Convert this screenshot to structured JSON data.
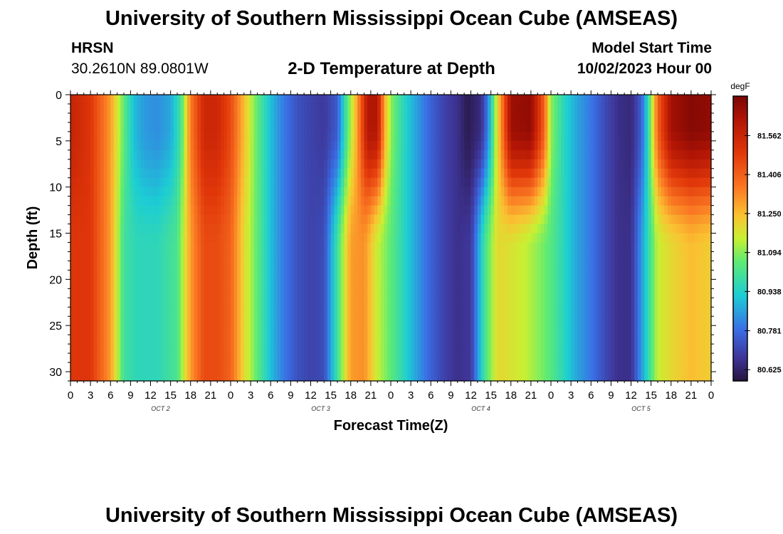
{
  "header": {
    "title": "University of Southern Mississippi Ocean Cube (AMSEAS)",
    "station": "HRSN",
    "coords": "30.2610N  89.0801W",
    "plot_title": "2-D Temperature at Depth",
    "model_start_label": "Model Start Time",
    "model_start_value": "10/02/2023 Hour 00"
  },
  "footer": {
    "title": "University of Southern Mississippi Ocean Cube (AMSEAS)"
  },
  "chart_data": {
    "type": "heatmap",
    "title": "2-D Temperature at Depth",
    "xlabel": "Forecast Time(Z)",
    "ylabel": "Depth (ft)",
    "x_tick_labels": [
      "0",
      "3",
      "6",
      "9",
      "12",
      "15",
      "18",
      "21",
      "0",
      "3",
      "6",
      "9",
      "12",
      "15",
      "18",
      "21",
      "0",
      "3",
      "6",
      "9",
      "12",
      "15",
      "18",
      "21",
      "0",
      "3",
      "6",
      "9",
      "12",
      "15",
      "18",
      "21",
      "0"
    ],
    "x_day_labels": [
      "OCT 2",
      "OCT 3",
      "OCT 4",
      "OCT 5"
    ],
    "xlim_hours": [
      0,
      96
    ],
    "y_ticks": [
      0,
      5,
      10,
      15,
      20,
      25,
      30
    ],
    "ylim": [
      0,
      31
    ],
    "y_inverted": true,
    "colorbar": {
      "unit": "degF",
      "ticks": [
        80.625,
        80.781,
        80.938,
        81.094,
        81.25,
        81.406,
        81.562
      ],
      "tick_labels": [
        "80.625",
        "80.781",
        "80.938",
        "81.094",
        "81.250",
        "81.406",
        "81.562"
      ],
      "range": [
        80.58,
        81.72
      ]
    },
    "surface_temperature_by_hour": [
      [
        0,
        81.57
      ],
      [
        3,
        81.5
      ],
      [
        6,
        81.3
      ],
      [
        8,
        81.05
      ],
      [
        9.5,
        80.9
      ],
      [
        11,
        80.85
      ],
      [
        13,
        80.83
      ],
      [
        15,
        80.87
      ],
      [
        16.5,
        81.0
      ],
      [
        18,
        81.35
      ],
      [
        20,
        81.55
      ],
      [
        22,
        81.55
      ],
      [
        24,
        81.45
      ],
      [
        26,
        81.25
      ],
      [
        28,
        81.05
      ],
      [
        30,
        80.9
      ],
      [
        32,
        80.8
      ],
      [
        34,
        80.73
      ],
      [
        36,
        80.7
      ],
      [
        38,
        80.68
      ],
      [
        40,
        80.75
      ],
      [
        41,
        80.95
      ],
      [
        43,
        81.3
      ],
      [
        44.5,
        81.62
      ],
      [
        46,
        81.62
      ],
      [
        47,
        81.3
      ],
      [
        48,
        81.1
      ],
      [
        50,
        80.95
      ],
      [
        52,
        80.85
      ],
      [
        54,
        80.76
      ],
      [
        56,
        80.7
      ],
      [
        58,
        80.66
      ],
      [
        59.5,
        80.6
      ],
      [
        61.5,
        80.65
      ],
      [
        62.5,
        80.8
      ],
      [
        64,
        81.2
      ],
      [
        66,
        81.66
      ],
      [
        69,
        81.68
      ],
      [
        71,
        81.4
      ],
      [
        72,
        81.1
      ],
      [
        74,
        80.95
      ],
      [
        76,
        80.86
      ],
      [
        78,
        80.8
      ],
      [
        80,
        80.72
      ],
      [
        82,
        80.66
      ],
      [
        84,
        80.64
      ],
      [
        85.5,
        80.75
      ],
      [
        86.5,
        80.95
      ],
      [
        88,
        81.4
      ],
      [
        90,
        81.65
      ],
      [
        93,
        81.7
      ],
      [
        96,
        81.68
      ]
    ],
    "deep_temperature_by_hour": [
      [
        0,
        81.5
      ],
      [
        3,
        81.5
      ],
      [
        6,
        81.3
      ],
      [
        8,
        81.0
      ],
      [
        10,
        80.96
      ],
      [
        13,
        80.96
      ],
      [
        16,
        81.02
      ],
      [
        18,
        81.3
      ],
      [
        20,
        81.45
      ],
      [
        22,
        81.45
      ],
      [
        24,
        81.4
      ],
      [
        26,
        81.2
      ],
      [
        28,
        81.05
      ],
      [
        30,
        80.9
      ],
      [
        32,
        80.8
      ],
      [
        34,
        80.73
      ],
      [
        36,
        80.7
      ],
      [
        38,
        80.72
      ],
      [
        40,
        81.0
      ],
      [
        42,
        81.3
      ],
      [
        44,
        81.32
      ],
      [
        46,
        81.15
      ],
      [
        48,
        81.05
      ],
      [
        50,
        80.95
      ],
      [
        52,
        80.85
      ],
      [
        54,
        80.76
      ],
      [
        56,
        80.7
      ],
      [
        58,
        80.66
      ],
      [
        60,
        80.68
      ],
      [
        62,
        81.0
      ],
      [
        64,
        81.2
      ],
      [
        66,
        81.18
      ],
      [
        68,
        81.15
      ],
      [
        70,
        81.1
      ],
      [
        72,
        81.04
      ],
      [
        74,
        80.95
      ],
      [
        76,
        80.86
      ],
      [
        78,
        80.8
      ],
      [
        80,
        80.72
      ],
      [
        82,
        80.66
      ],
      [
        84,
        80.66
      ],
      [
        86,
        80.9
      ],
      [
        88,
        81.15
      ],
      [
        90,
        81.2
      ],
      [
        93,
        81.25
      ],
      [
        96,
        81.22
      ]
    ]
  }
}
